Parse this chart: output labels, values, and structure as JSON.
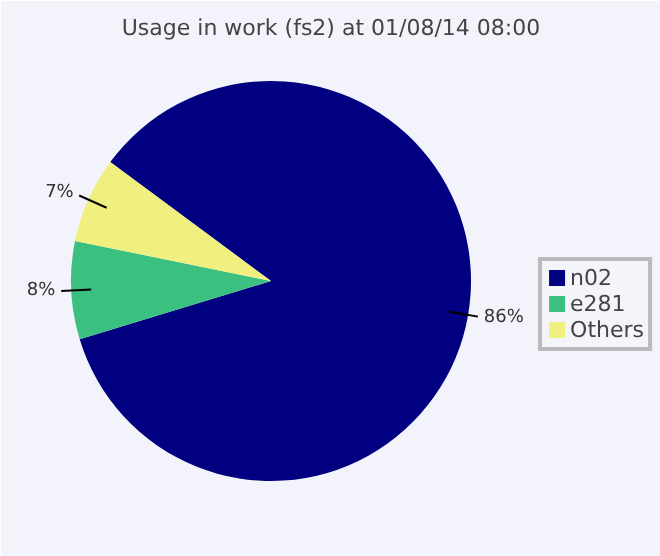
{
  "chart_data": {
    "type": "pie",
    "title": "Usage in work (fs2) at 01/08/14 08:00",
    "categories": [
      "n02",
      "e281",
      "Others"
    ],
    "values": [
      86,
      8,
      7
    ],
    "colors": [
      "#000080",
      "#3cc080",
      "#f0f080"
    ],
    "value_labels": [
      "86%",
      "8%",
      "7%"
    ],
    "legend": "right"
  }
}
